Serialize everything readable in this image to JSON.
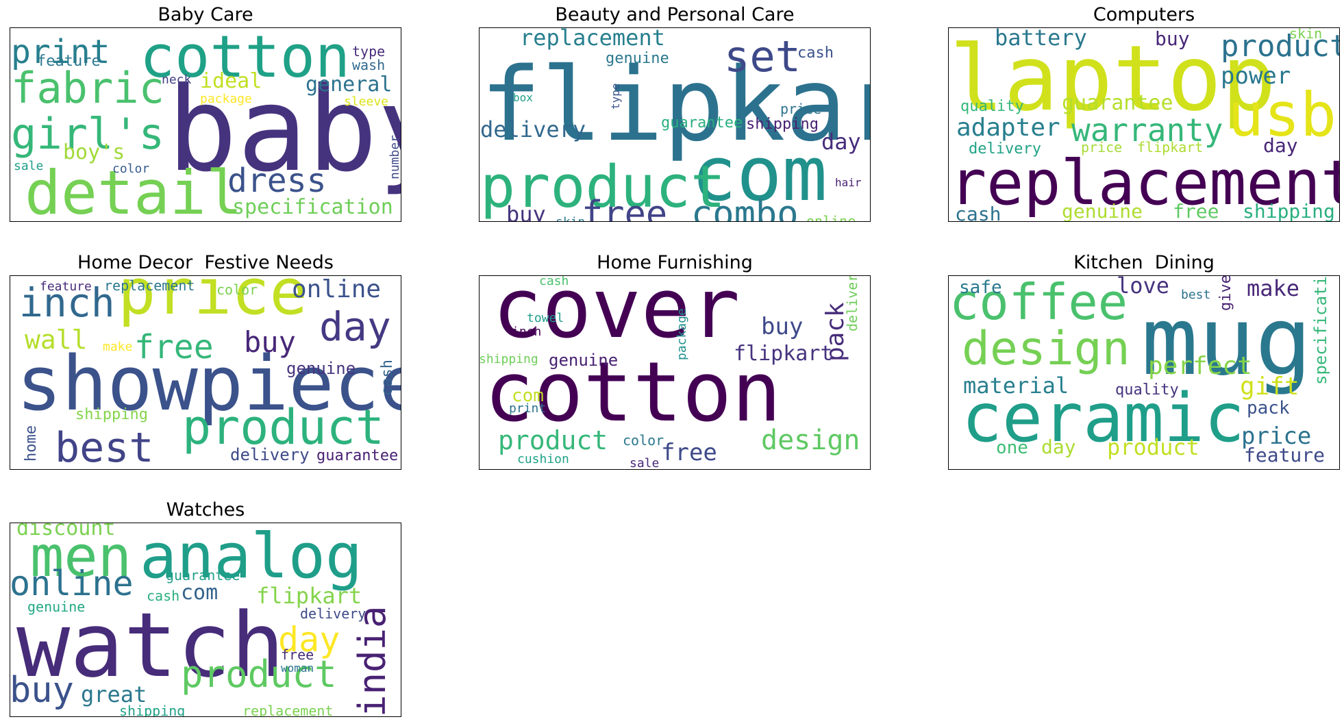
{
  "figure": {
    "panels": [
      {
        "title": "Baby Care",
        "words": [
          {
            "text": "baby",
            "color": "#46337e"
          },
          {
            "text": "cotton",
            "color": "#1fa187"
          },
          {
            "text": "detail",
            "color": "#75d054"
          },
          {
            "text": "fabric",
            "color": "#4ac16d"
          },
          {
            "text": "girl's",
            "color": "#35b779"
          },
          {
            "text": "print",
            "color": "#277f8e"
          },
          {
            "text": "dress",
            "color": "#3b528b"
          },
          {
            "text": "specification",
            "color": "#6ece58"
          },
          {
            "text": "general",
            "color": "#2c728e"
          },
          {
            "text": "ideal",
            "color": "#c2df23"
          },
          {
            "text": "boy's",
            "color": "#a0da39"
          },
          {
            "text": "feature",
            "color": "#2a788e"
          },
          {
            "text": "type",
            "color": "#472c7a"
          },
          {
            "text": "wash",
            "color": "#31688e"
          },
          {
            "text": "neck",
            "color": "#424086"
          },
          {
            "text": "package",
            "color": "#fde725"
          },
          {
            "text": "sleeve",
            "color": "#dde318"
          },
          {
            "text": "color",
            "color": "#365c8d"
          },
          {
            "text": "sale",
            "color": "#1f9e89"
          },
          {
            "text": "number",
            "color": "#3e4989"
          }
        ]
      },
      {
        "title": "Beauty and Personal Care",
        "words": [
          {
            "text": "flipkart",
            "color": "#2c728e"
          },
          {
            "text": "com",
            "color": "#21918c"
          },
          {
            "text": "product",
            "color": "#2db27d"
          },
          {
            "text": "combo",
            "color": "#2a788e"
          },
          {
            "text": "free",
            "color": "#414487"
          },
          {
            "text": "set",
            "color": "#3e4989"
          },
          {
            "text": "replacement",
            "color": "#277f8e"
          },
          {
            "text": "delivery",
            "color": "#31688e"
          },
          {
            "text": "day",
            "color": "#472d7b"
          },
          {
            "text": "buy",
            "color": "#46337e"
          },
          {
            "text": "cash",
            "color": "#3b528b"
          },
          {
            "text": "genuine",
            "color": "#2a788e"
          },
          {
            "text": "guarantee",
            "color": "#29af7f"
          },
          {
            "text": "shipping",
            "color": "#482173"
          },
          {
            "text": "price",
            "color": "#2c728e"
          },
          {
            "text": "box",
            "color": "#1f9e89"
          },
          {
            "text": "type",
            "color": "#3b528b"
          },
          {
            "text": "skin",
            "color": "#2a788e"
          },
          {
            "text": "hair",
            "color": "#481f70"
          },
          {
            "text": "online",
            "color": "#7ad151"
          }
        ]
      },
      {
        "title": "Computers",
        "words": [
          {
            "text": "laptop",
            "color": "#d0e11c"
          },
          {
            "text": "replacement",
            "color": "#440154"
          },
          {
            "text": "usb",
            "color": "#e5e419"
          },
          {
            "text": "warranty",
            "color": "#35b779"
          },
          {
            "text": "product",
            "color": "#2c728e"
          },
          {
            "text": "adapter",
            "color": "#277f8e"
          },
          {
            "text": "power",
            "color": "#2a788e"
          },
          {
            "text": "battery",
            "color": "#2a788e"
          },
          {
            "text": "guarantee",
            "color": "#b5de2b"
          },
          {
            "text": "genuine",
            "color": "#addc30"
          },
          {
            "text": "free",
            "color": "#5ec962"
          },
          {
            "text": "shipping",
            "color": "#29af7f"
          },
          {
            "text": "cash",
            "color": "#2c728e"
          },
          {
            "text": "day",
            "color": "#482677"
          },
          {
            "text": "buy",
            "color": "#482878"
          },
          {
            "text": "quality",
            "color": "#35b779"
          },
          {
            "text": "delivery",
            "color": "#20a386"
          },
          {
            "text": "price",
            "color": "#a5db36"
          },
          {
            "text": "flipkart",
            "color": "#addc30"
          },
          {
            "text": "skin",
            "color": "#7ad151"
          }
        ]
      },
      {
        "title": "Home Decor  Festive Needs",
        "words": [
          {
            "text": "showpiece",
            "color": "#3b528b"
          },
          {
            "text": "price",
            "color": "#c2df23"
          },
          {
            "text": "product",
            "color": "#2db27d"
          },
          {
            "text": "best",
            "color": "#414487"
          },
          {
            "text": "inch",
            "color": "#31688e"
          },
          {
            "text": "day",
            "color": "#443983"
          },
          {
            "text": "free",
            "color": "#35b779"
          },
          {
            "text": "wall",
            "color": "#b5de2b"
          },
          {
            "text": "online",
            "color": "#3b528b"
          },
          {
            "text": "buy",
            "color": "#482878"
          },
          {
            "text": "genuine",
            "color": "#46337e"
          },
          {
            "text": "shipping",
            "color": "#84d44b"
          },
          {
            "text": "delivery",
            "color": "#3e4989"
          },
          {
            "text": "guarantee",
            "color": "#482173"
          },
          {
            "text": "replacement",
            "color": "#2a788e"
          },
          {
            "text": "feature",
            "color": "#472c7a"
          },
          {
            "text": "color",
            "color": "#7ad151"
          },
          {
            "text": "make",
            "color": "#fde725"
          },
          {
            "text": "cash",
            "color": "#33638d"
          },
          {
            "text": "home",
            "color": "#3b528b"
          }
        ]
      },
      {
        "title": "Home Furnishing",
        "words": [
          {
            "text": "cover",
            "color": "#440154"
          },
          {
            "text": "cotton",
            "color": "#440154"
          },
          {
            "text": "design",
            "color": "#5ec962"
          },
          {
            "text": "product",
            "color": "#35b779"
          },
          {
            "text": "free",
            "color": "#3e4989"
          },
          {
            "text": "flipkart",
            "color": "#46337e"
          },
          {
            "text": "buy",
            "color": "#3e4989"
          },
          {
            "text": "pack",
            "color": "#472c7a"
          },
          {
            "text": "genuine",
            "color": "#482173"
          },
          {
            "text": "delivery",
            "color": "#6ece58"
          },
          {
            "text": "package",
            "color": "#21918c"
          },
          {
            "text": "com",
            "color": "#c2df23"
          },
          {
            "text": "towel",
            "color": "#1f9e89"
          },
          {
            "text": "inch",
            "color": "#440154"
          },
          {
            "text": "shipping",
            "color": "#6ece58"
          },
          {
            "text": "print",
            "color": "#2c728e"
          },
          {
            "text": "color",
            "color": "#2a788e"
          },
          {
            "text": "cushion",
            "color": "#1fa187"
          },
          {
            "text": "sale",
            "color": "#482878"
          },
          {
            "text": "cash",
            "color": "#4ac16d"
          }
        ]
      },
      {
        "title": "Kitchen  Dining",
        "words": [
          {
            "text": "mug",
            "color": "#2a788e"
          },
          {
            "text": "ceramic",
            "color": "#1f9e89"
          },
          {
            "text": "coffee",
            "color": "#4ac16d"
          },
          {
            "text": "design",
            "color": "#75d054"
          },
          {
            "text": "perfect",
            "color": "#86d549"
          },
          {
            "text": "material",
            "color": "#277f8e"
          },
          {
            "text": "product",
            "color": "#c2df23"
          },
          {
            "text": "gift",
            "color": "#d0e11c"
          },
          {
            "text": "price",
            "color": "#2c728e"
          },
          {
            "text": "make",
            "color": "#482878"
          },
          {
            "text": "love",
            "color": "#46337e"
          },
          {
            "text": "safe",
            "color": "#2a788e"
          },
          {
            "text": "day",
            "color": "#addc30"
          },
          {
            "text": "one",
            "color": "#3ebc74"
          },
          {
            "text": "pack",
            "color": "#3b528b"
          },
          {
            "text": "feature",
            "color": "#3e4989"
          },
          {
            "text": "specification",
            "color": "#35b779"
          },
          {
            "text": "give",
            "color": "#482173"
          },
          {
            "text": "quality",
            "color": "#46337e"
          },
          {
            "text": "best",
            "color": "#2c728e"
          }
        ]
      },
      {
        "title": "Watches",
        "words": [
          {
            "text": "watch",
            "color": "#472c7a"
          },
          {
            "text": "analog",
            "color": "#1f9e89"
          },
          {
            "text": "men",
            "color": "#4ac16d"
          },
          {
            "text": "product",
            "color": "#5ec962"
          },
          {
            "text": "online",
            "color": "#2c728e"
          },
          {
            "text": "india",
            "color": "#482173"
          },
          {
            "text": "buy",
            "color": "#3b528b"
          },
          {
            "text": "day",
            "color": "#fde725"
          },
          {
            "text": "flipkart",
            "color": "#84d44b"
          },
          {
            "text": "great",
            "color": "#2a788e"
          },
          {
            "text": "discount",
            "color": "#7ad151"
          },
          {
            "text": "com",
            "color": "#33638d"
          },
          {
            "text": "guarantee",
            "color": "#1f9e89"
          },
          {
            "text": "cash",
            "color": "#29af7f"
          },
          {
            "text": "delivery",
            "color": "#3e4989"
          },
          {
            "text": "genuine",
            "color": "#22a884"
          },
          {
            "text": "free",
            "color": "#472c7a"
          },
          {
            "text": "woman",
            "color": "#2c728e"
          },
          {
            "text": "shipping",
            "color": "#1fa187"
          },
          {
            "text": "replacement",
            "color": "#7ad151"
          }
        ]
      }
    ]
  }
}
